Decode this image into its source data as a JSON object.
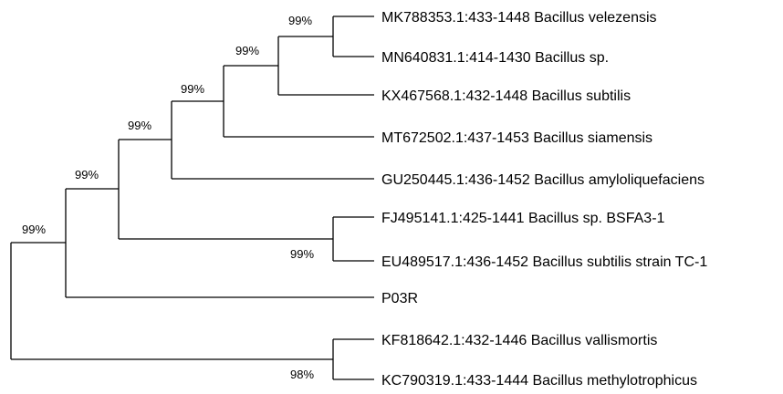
{
  "tree": {
    "leaves": [
      "MK788353.1:433-1448 Bacillus velezensis",
      "MN640831.1:414-1430 Bacillus sp.",
      "KX467568.1:432-1448 Bacillus subtilis",
      "MT672502.1:437-1453 Bacillus siamensis",
      "GU250445.1:436-1452 Bacillus amyloliquefaciens",
      "FJ495141.1:425-1441 Bacillus sp. BSFA3-1",
      "EU489517.1:436-1452 Bacillus subtilis strain TC-1",
      "P03R",
      "KF818642.1:432-1446 Bacillus vallismortis",
      "KC790319.1:433-1444 Bacillus methylotrophicus"
    ],
    "bootstrap": {
      "velezensis_sp": "99%",
      "with_subtilis": "99%",
      "with_siamensis": "99%",
      "with_amyloliquefaciens": "99%",
      "bsfa3_tc1": "99%",
      "with_p03r": "99%",
      "root": "99%",
      "vallismortis_methylotrophicus": "98%"
    }
  }
}
